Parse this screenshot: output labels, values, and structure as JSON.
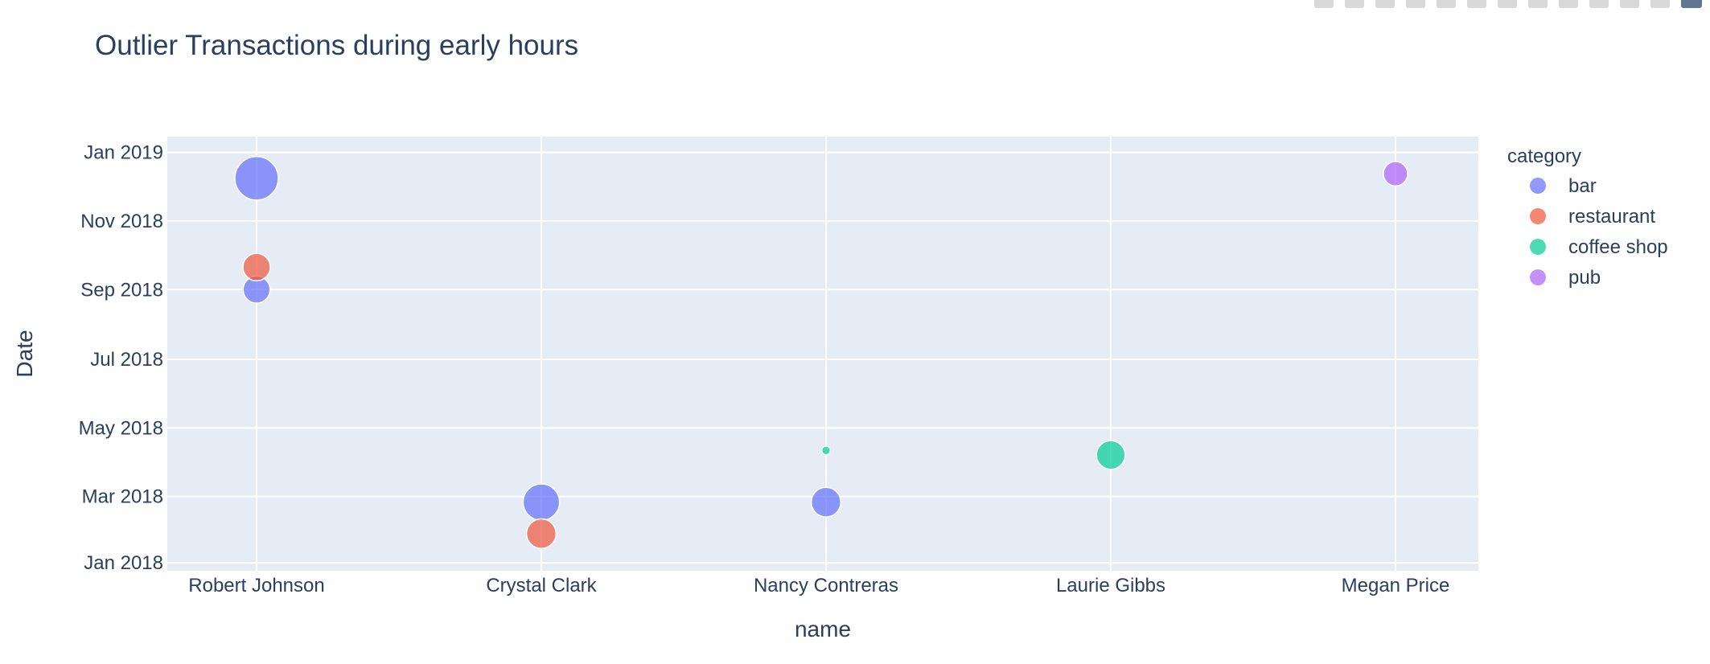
{
  "chart_data": {
    "type": "scatter",
    "title": "Outlier Transactions during early hours",
    "xlabel": "name",
    "ylabel": "Date",
    "categories": [
      "Robert Johnson",
      "Crystal Clark",
      "Nancy Contreras",
      "Laurie Gibbs",
      "Megan Price"
    ],
    "y_ticks": [
      "Jan 2018",
      "Mar 2018",
      "May 2018",
      "Jul 2018",
      "Sep 2018",
      "Nov 2018",
      "Jan 2019"
    ],
    "ylim": [
      "2017-12-25",
      "2019-01-15"
    ],
    "grid": true,
    "legend_title": "category",
    "legend_position": "right",
    "series": [
      {
        "name": "bar",
        "color": "#636efa",
        "points": [
          {
            "x": "Robert Johnson",
            "y": "2018-12-09",
            "size": 1.0
          },
          {
            "x": "Robert Johnson",
            "y": "2018-09-01",
            "size": 0.62
          },
          {
            "x": "Crystal Clark",
            "y": "2018-02-24",
            "size": 0.84
          },
          {
            "x": "Nancy Contreras",
            "y": "2018-02-24",
            "size": 0.68
          }
        ]
      },
      {
        "name": "restaurant",
        "color": "#ef553b",
        "points": [
          {
            "x": "Robert Johnson",
            "y": "2018-09-21",
            "size": 0.63
          },
          {
            "x": "Crystal Clark",
            "y": "2018-01-27",
            "size": 0.68
          }
        ]
      },
      {
        "name": "coffee shop",
        "color": "#00cc96",
        "points": [
          {
            "x": "Nancy Contreras",
            "y": "2018-04-11",
            "size": 0.2
          },
          {
            "x": "Laurie Gibbs",
            "y": "2018-04-07",
            "size": 0.66
          }
        ]
      },
      {
        "name": "pub",
        "color": "#ab63fa",
        "points": [
          {
            "x": "Megan Price",
            "y": "2018-12-13",
            "size": 0.56
          }
        ]
      }
    ]
  }
}
